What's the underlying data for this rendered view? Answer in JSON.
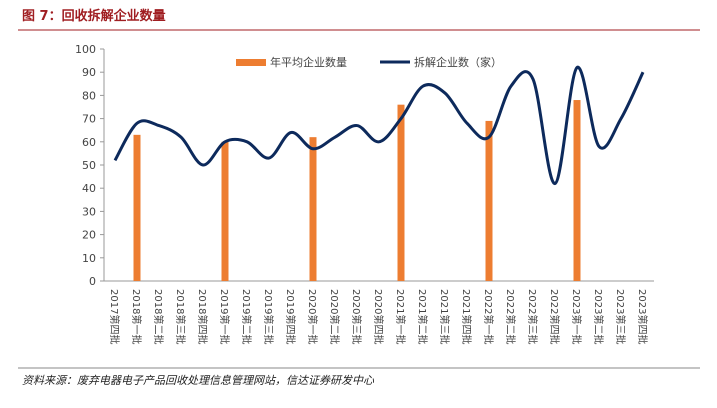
{
  "title": "图 7：回收拆解企业数量",
  "source": "资料来源：废弃电器电子产品回收处理信息管理网站，信达证券研发中心",
  "chart_data": {
    "type": "bar_line",
    "categories": [
      "2017第四批",
      "2018第一批",
      "2018第二批",
      "2018第三批",
      "2018第四批",
      "2019第一批",
      "2019第二批",
      "2019第三批",
      "2019第四批",
      "2020第一批",
      "2020第二批",
      "2020第三批",
      "2020第四批",
      "2021第一批",
      "2021第二批",
      "2021第三批",
      "2021第四批",
      "2022第一批",
      "2022第二批",
      "2022第三批",
      "2022第四批",
      "2023第一批",
      "2023第二批",
      "2023第三批",
      "2023第四批"
    ],
    "series": [
      {
        "name": "年平均企业数量",
        "type": "bar",
        "color": "#ed7d31",
        "values": [
          null,
          63,
          null,
          null,
          null,
          60,
          null,
          null,
          null,
          62,
          null,
          null,
          null,
          76,
          null,
          null,
          null,
          69,
          null,
          null,
          null,
          78,
          null,
          null,
          null
        ]
      },
      {
        "name": "拆解企业数（家）",
        "type": "line",
        "color": "#0d2a5c",
        "values": [
          52,
          68,
          67,
          62,
          50,
          60,
          60,
          53,
          64,
          57,
          62,
          67,
          60,
          70,
          84,
          81,
          68,
          62,
          84,
          87,
          42,
          92,
          58,
          70,
          90
        ]
      }
    ],
    "ylim": [
      0,
      100
    ],
    "yticks": [
      0,
      10,
      20,
      30,
      40,
      50,
      60,
      70,
      80,
      90,
      100
    ],
    "legend": "top"
  }
}
